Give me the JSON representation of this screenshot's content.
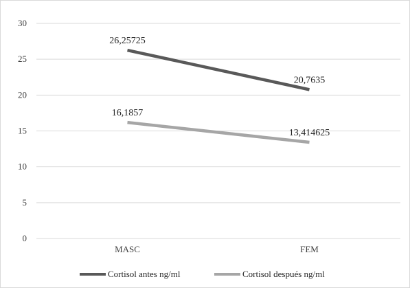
{
  "chart_data": {
    "type": "line",
    "categories": [
      "MASC",
      "FEM"
    ],
    "series": [
      {
        "name": "Cortisol antes ng/ml",
        "values": [
          26.25725,
          20.7635
        ],
        "labels": [
          "26,25725",
          "20,7635"
        ],
        "color": "#595959"
      },
      {
        "name": "Cortisol después ng/ml",
        "values": [
          16.1857,
          13.414625
        ],
        "labels": [
          "16,1857",
          "13,414625"
        ],
        "color": "#a6a6a6"
      }
    ],
    "ylim": [
      0,
      30
    ],
    "yticks": [
      "0",
      "5",
      "10",
      "15",
      "20",
      "25",
      "30"
    ],
    "grid": true,
    "legend_position": "bottom"
  }
}
